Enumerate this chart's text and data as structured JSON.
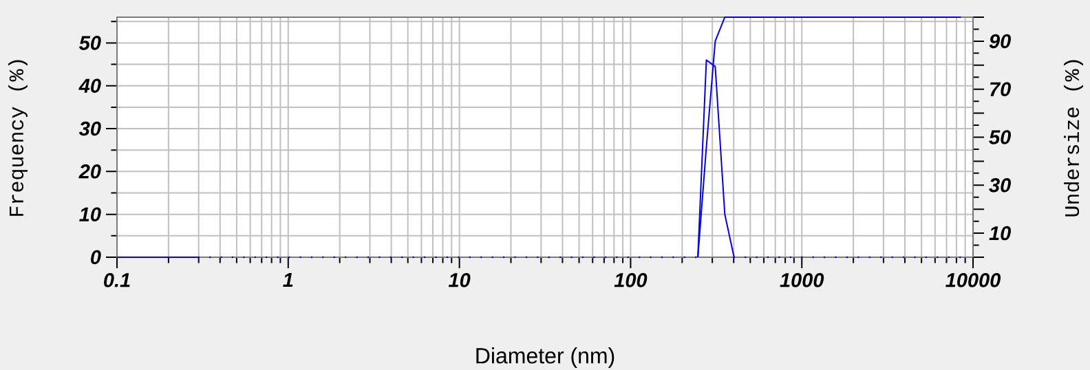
{
  "chart_data": {
    "type": "line",
    "xlabel": "Diameter (nm)",
    "ylabel": "Frequency (%)",
    "y2label": "Undersize (%)",
    "log": "x",
    "grid": true,
    "xlim": [
      0.1,
      10000
    ],
    "xticks": [
      0.1,
      1,
      10,
      100,
      1000,
      10000
    ],
    "ylim": [
      0,
      56
    ],
    "yticks": [
      0,
      10,
      20,
      30,
      40,
      50
    ],
    "y2lim": [
      0,
      100
    ],
    "y2ticks": [
      {
        "value": 0,
        "label": null
      },
      10,
      {
        "value": 20,
        "label": null
      },
      30,
      {
        "value": 40,
        "label": null
      },
      50,
      {
        "value": 60,
        "label": null
      },
      70,
      {
        "value": 80,
        "label": null
      },
      90,
      {
        "value": 100,
        "label": null
      }
    ],
    "series": [
      {
        "color": "#0000e6",
        "x": [
          247,
          277,
          312,
          355,
          402
        ],
        "values": [
          0,
          46,
          44.5,
          10,
          0
        ],
        "line_style": "solid"
      },
      {
        "color": "#0000e6",
        "axis": "y2",
        "x": [
          247,
          277,
          312,
          355,
          8500
        ],
        "values": [
          0,
          46,
          90,
          100,
          100
        ],
        "line_style": "solid"
      },
      {
        "color": "#0000e6",
        "x": [
          0.1,
          0.3
        ],
        "values": [
          0,
          0
        ],
        "line_style": "solid"
      },
      {
        "color": "#0000e6",
        "x": [
          0.3,
          247,
          300,
          402,
          8500
        ],
        "values": [
          0,
          0,
          null,
          0,
          0
        ],
        "line_style": "dotted"
      }
    ]
  }
}
